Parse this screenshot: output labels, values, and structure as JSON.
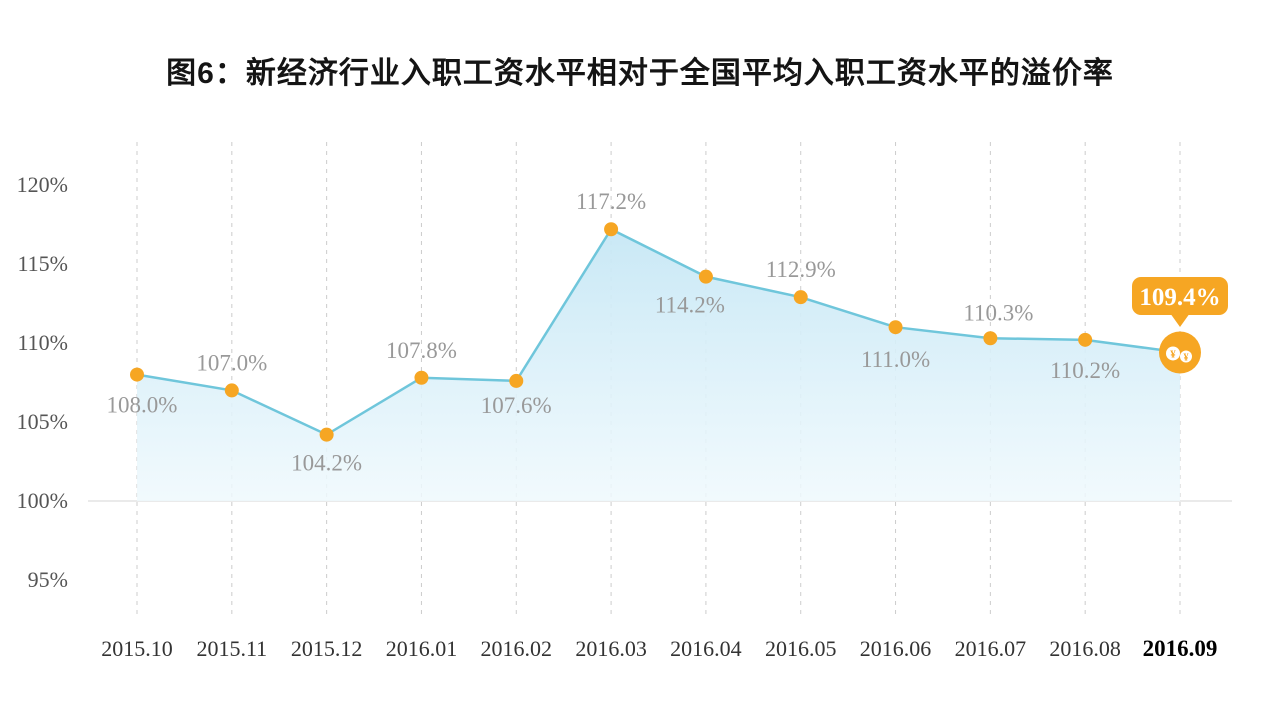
{
  "page": {
    "title": "图6：新经济行业入职工资水平相对于全国平均入职工资水平的溢价率"
  },
  "chart_data": {
    "type": "area",
    "title": "图6：新经济行业入职工资水平相对于全国平均入职工资水平的溢价率",
    "xlabel": "",
    "ylabel": "",
    "categories": [
      "2015.10",
      "2015.11",
      "2015.12",
      "2016.01",
      "2016.02",
      "2016.03",
      "2016.04",
      "2016.05",
      "2016.06",
      "2016.07",
      "2016.08",
      "2016.09"
    ],
    "values": [
      108.0,
      107.0,
      104.2,
      107.8,
      107.6,
      117.2,
      114.2,
      112.9,
      111.0,
      110.3,
      110.2,
      109.4
    ],
    "point_labels": [
      "108.0%",
      "107.0%",
      "104.2%",
      "107.8%",
      "107.6%",
      "117.2%",
      "114.2%",
      "112.9%",
      "111.0%",
      "110.3%",
      "110.2%",
      "109.4%"
    ],
    "label_positions": [
      "below",
      "above",
      "below",
      "above",
      "below",
      "above",
      "below",
      "above",
      "below",
      "above",
      "below",
      "badge"
    ],
    "y_ticks": [
      120,
      115,
      110,
      105,
      100,
      95
    ],
    "y_tick_labels": [
      "120%",
      "115%",
      "110%",
      "105%",
      "100%",
      "95%"
    ],
    "ylim": [
      95,
      120
    ],
    "baseline_value": 100,
    "grid": "vertical-dashed",
    "legend": "none",
    "highlight": {
      "index": 11,
      "label": "109.4%",
      "marker": "money-bags"
    },
    "colors": {
      "line": "#6FC6DB",
      "area_top": "#C6E7F5",
      "area_bottom": "#EFF9FD",
      "point": "#F6A623",
      "label": "#999999",
      "badge": "#F6A623",
      "badge_text": "#FFFFFF",
      "axis_text": "#555555",
      "x_axis_text": "#333333",
      "x_axis_last_text": "#000000",
      "grid": "#CCCCCC",
      "baseline": "#E3E3E3"
    }
  }
}
